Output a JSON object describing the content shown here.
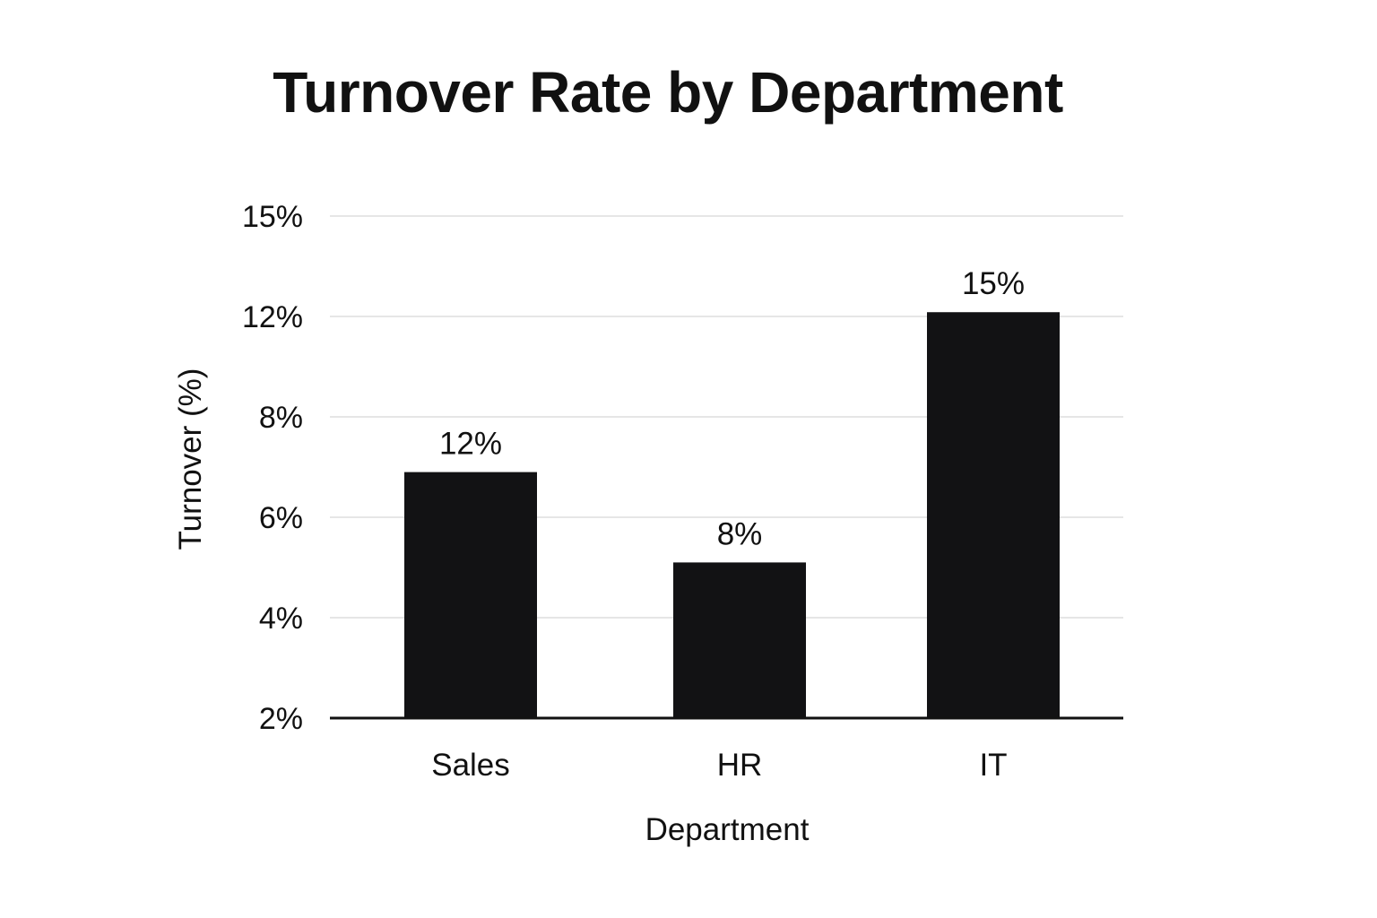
{
  "chart_data": {
    "type": "bar",
    "title": "Turnover Rate by Department",
    "xlabel": "Department",
    "ylabel": "Turnover (%)",
    "categories": [
      "Sales",
      "HR",
      "IT"
    ],
    "values": [
      12,
      8,
      15
    ],
    "data_labels": [
      "12%",
      "8%",
      "15%"
    ],
    "ytick_labels": [
      "2%",
      "4%",
      "6%",
      "8%",
      "12%",
      "15%"
    ],
    "bar_heights_on_axis": [
      6.9,
      5.1,
      12.5
    ],
    "grid": true,
    "legend": "none",
    "colors": {
      "bar": "#121214",
      "grid": "#e6e6e6",
      "axis": "#111111"
    }
  }
}
